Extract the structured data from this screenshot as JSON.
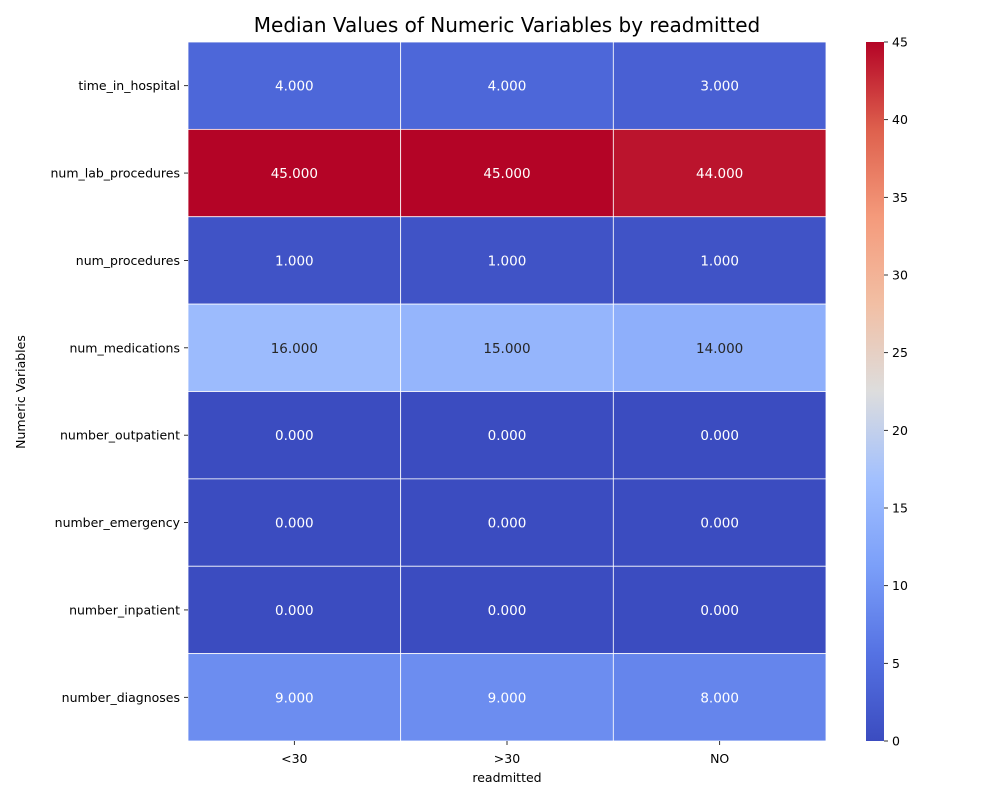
{
  "chart_data": {
    "type": "heatmap",
    "title": "Median Values of Numeric Variables by readmitted",
    "xlabel": "readmitted",
    "ylabel": "Numeric Variables",
    "x_categories": [
      "<30",
      ">30",
      "NO"
    ],
    "y_categories": [
      "time_in_hospital",
      "num_lab_procedures",
      "num_procedures",
      "num_medications",
      "number_outpatient",
      "number_emergency",
      "number_inpatient",
      "number_diagnoses"
    ],
    "values": [
      [
        4,
        4,
        3
      ],
      [
        45,
        45,
        44
      ],
      [
        1,
        1,
        1
      ],
      [
        16,
        15,
        14
      ],
      [
        0,
        0,
        0
      ],
      [
        0,
        0,
        0
      ],
      [
        0,
        0,
        0
      ],
      [
        9,
        9,
        8
      ]
    ],
    "value_labels": [
      [
        "4.000",
        "4.000",
        "3.000"
      ],
      [
        "45.000",
        "45.000",
        "44.000"
      ],
      [
        "1.000",
        "1.000",
        "1.000"
      ],
      [
        "16.000",
        "15.000",
        "14.000"
      ],
      [
        "0.000",
        "0.000",
        "0.000"
      ],
      [
        "0.000",
        "0.000",
        "0.000"
      ],
      [
        "0.000",
        "0.000",
        "0.000"
      ],
      [
        "9.000",
        "9.000",
        "8.000"
      ]
    ],
    "colormap": "coolwarm",
    "vmin": 0,
    "vmax": 45,
    "colorbar_ticks": [
      0,
      5,
      10,
      15,
      20,
      25,
      30,
      35,
      40,
      45
    ],
    "colorbar_tick_labels": [
      "0",
      "5",
      "10",
      "15",
      "20",
      "25",
      "30",
      "35",
      "40",
      "45"
    ],
    "grid": false,
    "legend": "colorbar-right"
  }
}
